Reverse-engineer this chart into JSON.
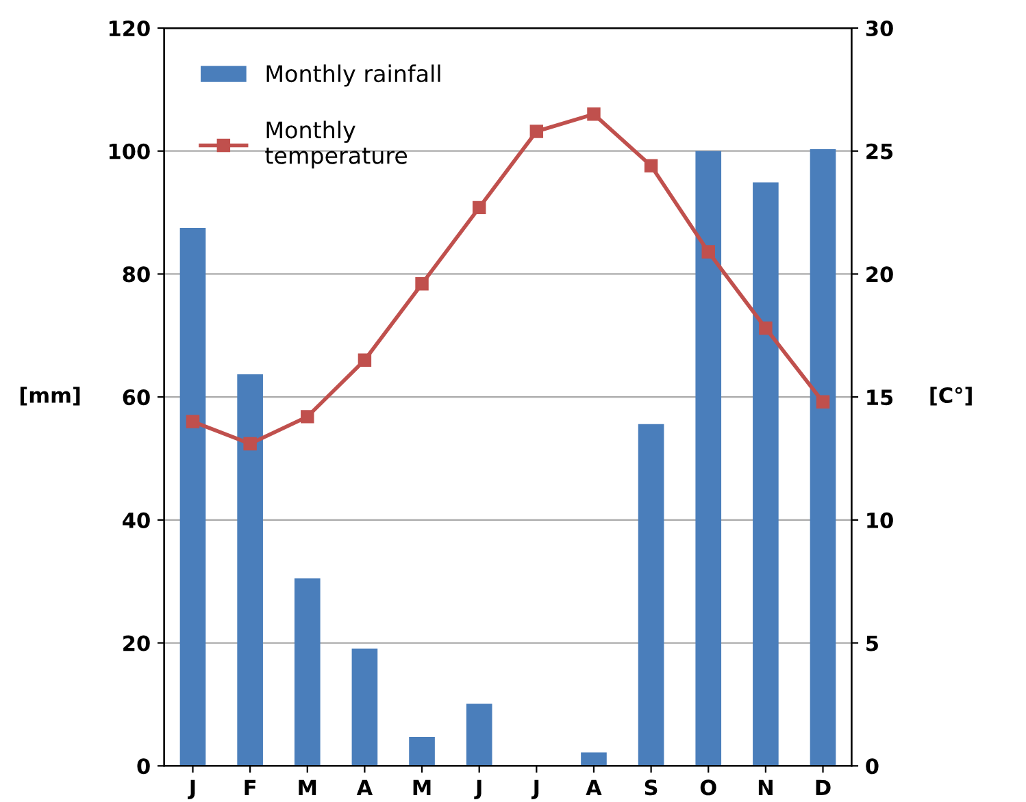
{
  "chart_data": {
    "type": "bar",
    "categories": [
      "J",
      "F",
      "M",
      "A",
      "M",
      "J",
      "J",
      "A",
      "S",
      "O",
      "N",
      "D"
    ],
    "ylabel": "[mm]",
    "y2label": "[C°]",
    "series": [
      {
        "name": "Monthly rainfall",
        "color": "#4a7ebb",
        "values": [
          87.5,
          63.7,
          30.5,
          19.1,
          4.7,
          10.1,
          0,
          2.2,
          55.6,
          100,
          94.9,
          100.3
        ]
      },
      {
        "name": "Monthly\ntemperature",
        "type": "line",
        "axis": "y2",
        "color": "#c0504d",
        "marker": "square",
        "values": [
          14.0,
          13.1,
          14.2,
          16.5,
          19.6,
          22.7,
          25.8,
          26.5,
          24.4,
          20.9,
          17.8,
          14.8
        ]
      }
    ],
    "ylim": [
      0,
      120
    ],
    "yticks": [
      0,
      20,
      40,
      60,
      80,
      100,
      120
    ],
    "y2lim": [
      0,
      30
    ],
    "y2ticks": [
      0,
      5,
      10,
      15,
      20,
      25,
      30
    ],
    "grid": "y",
    "legend": "top left"
  }
}
